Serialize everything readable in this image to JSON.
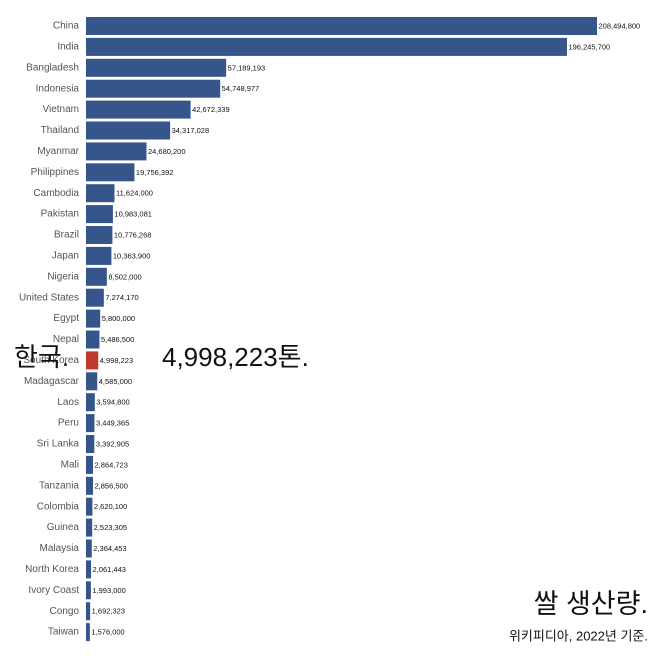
{
  "chart_data": {
    "type": "bar",
    "orientation": "horizontal",
    "categories": [
      "China",
      "India",
      "Bangladesh",
      "Indonesia",
      "Vietnam",
      "Thailand",
      "Myanmar",
      "Philippines",
      "Cambodia",
      "Pakistan",
      "Brazil",
      "Japan",
      "Nigeria",
      "United States",
      "Egypt",
      "Nepal",
      "South Korea",
      "Madagascar",
      "Laos",
      "Peru",
      "Sri Lanka",
      "Mali",
      "Tanzania",
      "Colombia",
      "Guinea",
      "Malaysia",
      "North Korea",
      "Ivory Coast",
      "Congo",
      "Taiwan"
    ],
    "values": [
      208494800,
      196245700,
      57189193,
      54748977,
      42672339,
      34317028,
      24680200,
      19756392,
      11624000,
      10983081,
      10776268,
      10363900,
      8502000,
      7274170,
      5800000,
      5486500,
      4998223,
      4585000,
      3594800,
      3449365,
      3392905,
      2864723,
      2856500,
      2620100,
      2523305,
      2364453,
      2061443,
      1993000,
      1692323,
      1576000
    ],
    "value_labels": [
      "208,494,800",
      "196,245,700",
      "57,189,193",
      "54,748,977",
      "42,672,339",
      "34,317,028",
      "24,680,200",
      "19,756,392",
      "11,624,000",
      "10,983,081",
      "10,776,268",
      "10,363,900",
      "8,502,000",
      "7,274,170",
      "5,800,000",
      "5,486,500",
      "4,998,223",
      "4,585,000",
      "3,594,800",
      "3,449,365",
      "3,392,905",
      "2,864,723",
      "2,856,500",
      "2,620,100",
      "2,523,305",
      "2,364,453",
      "2,061,443",
      "1,993,000",
      "1,692,323",
      "1,576,000"
    ],
    "colors": [
      "#36558a",
      "#36558a",
      "#36558a",
      "#36558a",
      "#36558a",
      "#36558a",
      "#36558a",
      "#36558a",
      "#36558a",
      "#36558a",
      "#36558a",
      "#36558a",
      "#36558a",
      "#36558a",
      "#36558a",
      "#36558a",
      "#c0392b",
      "#36558a",
      "#36558a",
      "#36558a",
      "#36558a",
      "#36558a",
      "#36558a",
      "#36558a",
      "#36558a",
      "#36558a",
      "#36558a",
      "#36558a",
      "#36558a",
      "#36558a"
    ],
    "annotations": [
      "한국.",
      "4,998,223톤.",
      "쌀 생산량.",
      "위키피디아, 2022년 기준."
    ]
  }
}
